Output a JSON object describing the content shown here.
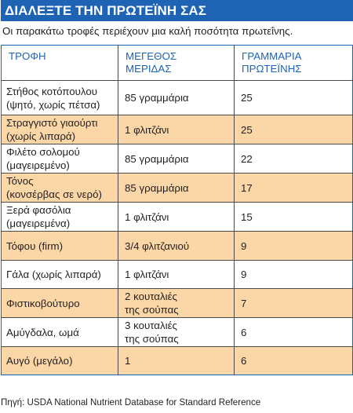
{
  "title": "ΔΙΑΛΕΞΤΕ ΤΗΝ ΠΡΩΤΕΪΝΗ ΣΑΣ",
  "subtitle": "Οι παρακάτω τροφές περιέχουν μια καλή ποσότητα πρωτεΐνης.",
  "table": {
    "headers": {
      "food": "ΤΡΟΦΗ",
      "portion_line1": "ΜΕΓΕΘΟΣ",
      "portion_line2": "ΜΕΡΙΔΑΣ",
      "protein_line1": "ΓΡΑΜΜΑΡΙΑ",
      "protein_line2": "ΠΡΩΤΕΪΝΗΣ"
    },
    "rows": [
      {
        "food1": "Στήθος κοτόπουλου",
        "food2": "(ψητό, χωρίς πέτσα)",
        "portion1": "85 γραμμάρια",
        "portion2": "",
        "grams": "25"
      },
      {
        "food1": "Στραγγιστό γιαούρτι",
        "food2": "(χωρίς λιπαρά)",
        "portion1": "1 φλιτζάνι",
        "portion2": "",
        "grams": "25"
      },
      {
        "food1": "Φιλέτο σολομού",
        "food2": "(μαγειρεμένο)",
        "portion1": "85 γραμμάρια",
        "portion2": "",
        "grams": "22"
      },
      {
        "food1": "Τόνος",
        "food2": "(κονσέρβας σε νερό)",
        "portion1": "85 γραμμάρια",
        "portion2": "",
        "grams": "17"
      },
      {
        "food1": "Ξερά φασόλια",
        "food2": "(μαγειρεμένα)",
        "portion1": "1 φλιτζάνι",
        "portion2": "",
        "grams": "15"
      },
      {
        "food1": "Τόφου (firm)",
        "food2": "",
        "portion1": "3/4 φλιτζανιού",
        "portion2": "",
        "grams": "9"
      },
      {
        "food1": "Γάλα (χωρίς λιπαρά)",
        "food2": "",
        "portion1": "1 φλιτζάνι",
        "portion2": "",
        "grams": "9"
      },
      {
        "food1": "Φιστικοβούτυρο",
        "food2": "",
        "portion1": "2 κουταλιές",
        "portion2": "της σούπας",
        "grams": "7"
      },
      {
        "food1": "Αμύγδαλα, ωμά",
        "food2": "",
        "portion1": "3 κουταλιές",
        "portion2": "της σούπας",
        "grams": "6"
      },
      {
        "food1": "Αυγό (μεγάλο)",
        "food2": "",
        "portion1": "1",
        "portion2": "",
        "grams": "6"
      }
    ]
  },
  "source": "Πηγή: USDA National Nutrient Database for Standard Reference",
  "colors": {
    "accent_blue": "#1f63b4",
    "alt_row_fill": "#fbd7a7"
  }
}
